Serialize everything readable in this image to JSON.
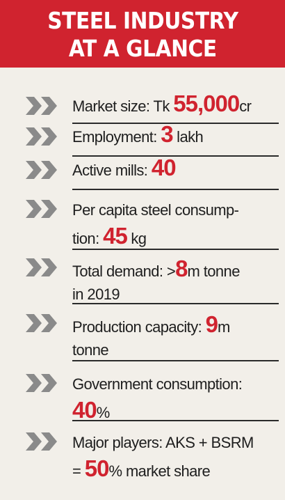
{
  "header": {
    "line1": "STEEL INDUSTRY",
    "line2": "AT A GLANCE"
  },
  "colors": {
    "accent": "#d0232f",
    "background": "#f2efe9",
    "chevron": "#8a8a8a",
    "text": "#1e1e1e"
  },
  "bullet_icon": "double-chevron-right-icon",
  "items": [
    {
      "lines": [
        [
          {
            "t": "Market size: Tk "
          },
          {
            "t": "55,000",
            "big": true
          },
          {
            "t": "cr"
          }
        ]
      ]
    },
    {
      "lines": [
        [
          {
            "t": "Employment: "
          },
          {
            "t": "3",
            "big": true
          },
          {
            "t": " lakh"
          }
        ]
      ]
    },
    {
      "lines": [
        [
          {
            "t": "Active mills: "
          },
          {
            "t": "40",
            "big": true
          }
        ]
      ]
    },
    {
      "lines": [
        [
          {
            "t": "Per capita steel consump-"
          }
        ],
        [
          {
            "t": "tion: "
          },
          {
            "t": "45",
            "big": true
          },
          {
            "t": " kg"
          }
        ]
      ]
    },
    {
      "lines": [
        [
          {
            "t": "Total demand: >"
          },
          {
            "t": "8",
            "big": true
          },
          {
            "t": "m tonne"
          }
        ],
        [
          {
            "t": "in 2019"
          }
        ]
      ]
    },
    {
      "lines": [
        [
          {
            "t": "Production capacity: "
          },
          {
            "t": "9",
            "big": true
          },
          {
            "t": "m"
          }
        ],
        [
          {
            "t": "tonne"
          }
        ]
      ]
    },
    {
      "lines": [
        [
          {
            "t": "Government consumption:"
          }
        ],
        [
          {
            "t": "40",
            "big": true
          },
          {
            "t": "%"
          }
        ]
      ]
    },
    {
      "lines": [
        [
          {
            "t": "Major players: AKS + BSRM"
          }
        ],
        [
          {
            "t": "= "
          },
          {
            "t": "50",
            "big": true
          },
          {
            "t": "% market share"
          }
        ]
      ]
    }
  ]
}
